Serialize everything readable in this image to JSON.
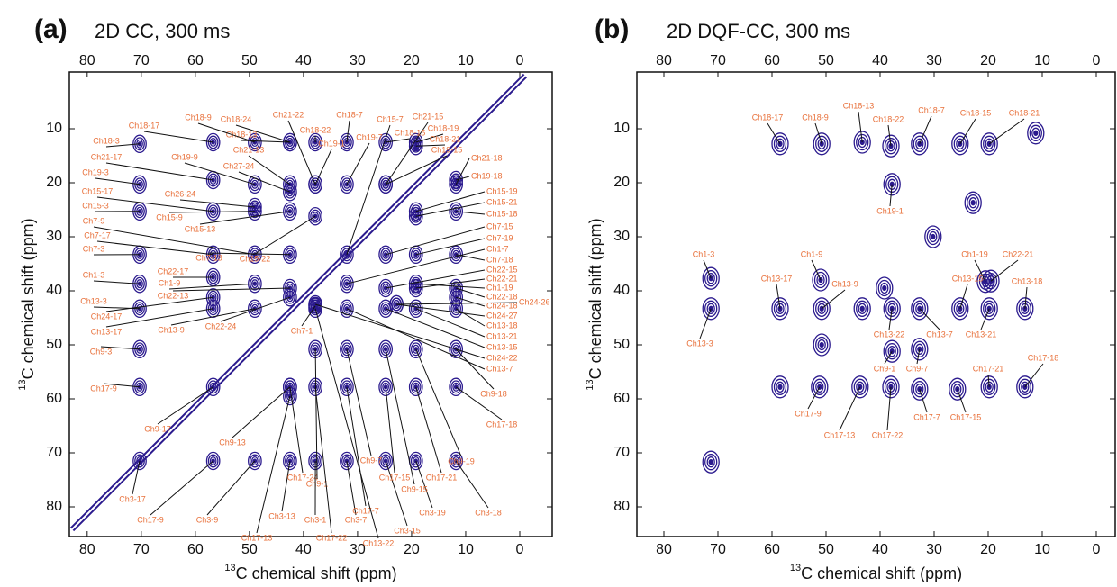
{
  "chart_data": [
    {
      "type": "contour",
      "panel": "(a)",
      "title": "2D CC, 300 ms",
      "xlabel_sup": "13",
      "xlabel": "C chemical shift (ppm)",
      "ylabel_sup": "13",
      "ylabel": "C chemical shift (ppm)",
      "xlim": [
        83.3,
        -6
      ],
      "ylim": [
        -0.5,
        85.5
      ],
      "xticks": [
        80,
        70,
        60,
        50,
        40,
        30,
        20,
        10,
        0
      ],
      "yticks": [
        10,
        20,
        30,
        40,
        50,
        60,
        70,
        80
      ],
      "color": "#2b1a8e",
      "label_color": "#e8703a",
      "peaks": [
        {
          "label": "Ch18-24",
          "x": 42.5,
          "y": 12.5
        },
        {
          "label": "Ch21-22",
          "x": 37.8,
          "y": 20.3
        },
        {
          "label": "Ch18-7",
          "x": 32.0,
          "y": 12.5
        },
        {
          "label": "Ch15-7",
          "x": 32.0,
          "y": 33.3
        },
        {
          "label": "Ch21-15",
          "x": 24.8,
          "y": 20.3
        },
        {
          "label": "Ch18-22",
          "x": 37.8,
          "y": 12.5
        },
        {
          "label": "Ch18-13",
          "x": 42.5,
          "y": 12.5
        },
        {
          "label": "Ch19-1",
          "x": 37.8,
          "y": 20.3
        },
        {
          "label": "Ch19-7",
          "x": 32.0,
          "y": 20.3
        },
        {
          "label": "Ch18-15",
          "x": 24.8,
          "y": 12.5
        },
        {
          "label": "Ch18-19",
          "x": 19.2,
          "y": 12.5
        },
        {
          "label": "Ch18-21",
          "x": 19.2,
          "y": 13.2
        },
        {
          "label": "Ch19-15",
          "x": 24.8,
          "y": 20.3
        },
        {
          "label": "Ch21-13",
          "x": 42.5,
          "y": 20.3
        },
        {
          "label": "Ch18-17",
          "x": 56.7,
          "y": 12.5
        },
        {
          "label": "Ch18-9",
          "x": 49.0,
          "y": 12.5
        },
        {
          "label": "Ch18-3",
          "x": 70.3,
          "y": 12.8
        },
        {
          "label": "Ch19-9",
          "x": 49.0,
          "y": 20.3
        },
        {
          "label": "Ch27-24",
          "x": 42.5,
          "y": 21.7
        },
        {
          "label": "Ch21-17",
          "x": 56.7,
          "y": 19.5
        },
        {
          "label": "Ch19-3",
          "x": 70.3,
          "y": 20.3
        },
        {
          "label": "Ch26-24",
          "x": 49.0,
          "y": 24.5
        },
        {
          "label": "Ch15-17",
          "x": 56.7,
          "y": 25.3
        },
        {
          "label": "Ch15-3",
          "x": 70.3,
          "y": 25.3
        },
        {
          "label": "Ch15-9",
          "x": 49.0,
          "y": 25.3
        },
        {
          "label": "Ch15-13",
          "x": 42.5,
          "y": 25.3
        },
        {
          "label": "Ch7-9",
          "x": 49.0,
          "y": 33.3
        },
        {
          "label": "Ch15-22",
          "x": 37.8,
          "y": 26.2
        },
        {
          "label": "Ch7-17",
          "x": 56.7,
          "y": 33.3
        },
        {
          "label": "Ch7-3",
          "x": 70.3,
          "y": 33.3
        },
        {
          "label": "Ch7-13",
          "x": 42.5,
          "y": 33.3
        },
        {
          "label": "Ch1-3",
          "x": 70.3,
          "y": 38.7
        },
        {
          "label": "Ch22-17",
          "x": 56.7,
          "y": 37.5
        },
        {
          "label": "Ch1-9",
          "x": 49.0,
          "y": 38.7
        },
        {
          "label": "Ch22-13",
          "x": 42.5,
          "y": 39.5
        },
        {
          "label": "Ch13-3",
          "x": 70.3,
          "y": 43.3
        },
        {
          "label": "Ch24-17",
          "x": 56.7,
          "y": 41.2
        },
        {
          "label": "Ch13-17",
          "x": 56.7,
          "y": 43.3
        },
        {
          "label": "Ch13-9",
          "x": 49.0,
          "y": 43.3
        },
        {
          "label": "Ch22-24",
          "x": 42.5,
          "y": 41.2
        },
        {
          "label": "Ch7-1",
          "x": 37.8,
          "y": 42.8
        },
        {
          "label": "Ch9-3",
          "x": 70.3,
          "y": 50.8
        },
        {
          "label": "Ch17-9",
          "x": 70.3,
          "y": 57.8
        },
        {
          "label": "Ch9-17",
          "x": 56.7,
          "y": 57.8
        },
        {
          "label": "Ch9-13",
          "x": 42.5,
          "y": 57.8
        },
        {
          "label": "Ch3-17",
          "x": 70.3,
          "y": 71.5
        },
        {
          "label": "Ch17-9",
          "x": 56.7,
          "y": 71.5
        },
        {
          "label": "Ch3-9",
          "x": 49.0,
          "y": 71.5
        },
        {
          "label": "Ch3-13",
          "x": 42.5,
          "y": 71.5
        },
        {
          "label": "Ch17-13",
          "x": 42.5,
          "y": 59.5
        },
        {
          "label": "Ch17-24",
          "x": 42.5,
          "y": 57.8
        },
        {
          "label": "Ch9-1",
          "x": 37.8,
          "y": 50.8
        },
        {
          "label": "Ch3-1",
          "x": 37.8,
          "y": 71.5
        },
        {
          "label": "Ch3-7",
          "x": 32.0,
          "y": 71.5
        },
        {
          "label": "Ch17-22",
          "x": 37.8,
          "y": 57.8
        },
        {
          "label": "Ch17-7",
          "x": 32.0,
          "y": 57.8
        },
        {
          "label": "Ch13-22",
          "x": 37.8,
          "y": 43.3
        },
        {
          "label": "Ch3-15",
          "x": 24.8,
          "y": 71.5
        },
        {
          "label": "Ch3-19",
          "x": 19.2,
          "y": 71.5
        },
        {
          "label": "Ch3-18",
          "x": 11.8,
          "y": 71.5
        },
        {
          "label": "Ch9-7",
          "x": 32.0,
          "y": 50.8
        },
        {
          "label": "Ch17-15",
          "x": 24.8,
          "y": 57.8
        },
        {
          "label": "Ch9-15",
          "x": 24.8,
          "y": 50.8
        },
        {
          "label": "Ch17-21",
          "x": 19.2,
          "y": 57.8
        },
        {
          "label": "Ch9-19",
          "x": 19.2,
          "y": 50.8
        },
        {
          "label": "Ch17-18",
          "x": 11.8,
          "y": 57.8
        },
        {
          "label": "Ch9-18",
          "x": 11.8,
          "y": 50.8
        },
        {
          "label": "Ch21-18",
          "x": 11.8,
          "y": 20.3
        },
        {
          "label": "Ch19-18",
          "x": 11.8,
          "y": 19.5
        },
        {
          "label": "Ch15-19",
          "x": 19.2,
          "y": 25.3
        },
        {
          "label": "Ch15-21",
          "x": 19.2,
          "y": 26.2
        },
        {
          "label": "Ch15-18",
          "x": 11.8,
          "y": 25.3
        },
        {
          "label": "Ch7-15",
          "x": 24.8,
          "y": 33.3
        },
        {
          "label": "Ch7-19",
          "x": 19.2,
          "y": 33.3
        },
        {
          "label": "Ch1-7",
          "x": 32.0,
          "y": 38.7
        },
        {
          "label": "Ch7-18",
          "x": 11.8,
          "y": 33.3
        },
        {
          "label": "Ch22-15",
          "x": 24.8,
          "y": 39.5
        },
        {
          "label": "Ch22-21",
          "x": 19.2,
          "y": 39.5
        },
        {
          "label": "Ch1-19",
          "x": 19.2,
          "y": 38.7
        },
        {
          "label": "Ch22-18",
          "x": 11.8,
          "y": 39.5
        },
        {
          "label": "Ch24-18",
          "x": 11.8,
          "y": 41.2
        },
        {
          "label": "Ch24-27",
          "x": 22.8,
          "y": 42.5
        },
        {
          "label": "Ch24-26",
          "x": 22.8,
          "y": 42.5
        },
        {
          "label": "Ch13-18",
          "x": 11.8,
          "y": 43.3
        },
        {
          "label": "Ch13-21",
          "x": 19.2,
          "y": 43.3
        },
        {
          "label": "Ch13-15",
          "x": 24.8,
          "y": 43.3
        },
        {
          "label": "Ch24-22",
          "x": 37.8,
          "y": 42.5
        },
        {
          "label": "Ch13-7",
          "x": 32.0,
          "y": 43.3
        }
      ]
    },
    {
      "type": "contour",
      "panel": "(b)",
      "title": "2D DQF-CC, 300 ms",
      "xlabel_sup": "13",
      "xlabel": "C chemical shift (ppm)",
      "ylabel_sup": "13",
      "ylabel": "C chemical shift (ppm)",
      "xlim": [
        85,
        -3.5
      ],
      "ylim": [
        -0.5,
        85.5
      ],
      "xticks": [
        80,
        70,
        60,
        50,
        40,
        30,
        20,
        10,
        0
      ],
      "yticks": [
        10,
        20,
        30,
        40,
        50,
        60,
        70,
        80
      ],
      "color": "#2b1a8e",
      "label_color": "#e8703a",
      "peaks": [
        {
          "label": "Ch18-17",
          "x": 58.5,
          "y": 12.8
        },
        {
          "label": "Ch18-9",
          "x": 50.8,
          "y": 12.8
        },
        {
          "label": "Ch18-13",
          "x": 43.3,
          "y": 12.5
        },
        {
          "label": "Ch18-22",
          "x": 38.0,
          "y": 13.2
        },
        {
          "label": "Ch18-7",
          "x": 32.7,
          "y": 12.8
        },
        {
          "label": "Ch18-15",
          "x": 25.2,
          "y": 12.8
        },
        {
          "label": "Ch18-21",
          "x": 19.8,
          "y": 12.8
        },
        {
          "label": "Ch19-1",
          "x": 37.8,
          "y": 20.3
        },
        {
          "label": "Ch1-3",
          "x": 71.3,
          "y": 37.7
        },
        {
          "label": "Ch1-9",
          "x": 51.0,
          "y": 38.0
        },
        {
          "label": "Ch1-19",
          "x": 20.5,
          "y": 38.3
        },
        {
          "label": "Ch22-21",
          "x": 19.5,
          "y": 38.2
        },
        {
          "label": "Ch13-17",
          "x": 58.5,
          "y": 43.3
        },
        {
          "label": "Ch13-9",
          "x": 50.8,
          "y": 43.3
        },
        {
          "label": "Ch13-3",
          "x": 71.3,
          "y": 43.3
        },
        {
          "label": "Ch13-22",
          "x": 37.8,
          "y": 43.3
        },
        {
          "label": "Ch13-7",
          "x": 32.7,
          "y": 43.3
        },
        {
          "label": "Ch13-15",
          "x": 25.2,
          "y": 43.3
        },
        {
          "label": "Ch13-21",
          "x": 19.8,
          "y": 43.3
        },
        {
          "label": "Ch13-18",
          "x": 13.2,
          "y": 43.3
        },
        {
          "label": "Ch9-1",
          "x": 37.8,
          "y": 51.2
        },
        {
          "label": "Ch9-7",
          "x": 32.7,
          "y": 50.8
        },
        {
          "label": "Ch17-9",
          "x": 51.2,
          "y": 57.8
        },
        {
          "label": "Ch17-13",
          "x": 43.7,
          "y": 57.8
        },
        {
          "label": "Ch17-22",
          "x": 38.0,
          "y": 57.8
        },
        {
          "label": "Ch17-7",
          "x": 32.7,
          "y": 58.2
        },
        {
          "label": "Ch17-15",
          "x": 25.7,
          "y": 58.2
        },
        {
          "label": "Ch17-21",
          "x": 19.8,
          "y": 57.8
        },
        {
          "label": "Ch17-18",
          "x": 13.2,
          "y": 57.8
        }
      ],
      "unlabeled_peaks": [
        {
          "x": 11.2,
          "y": 10.8
        },
        {
          "x": 22.8,
          "y": 23.7
        },
        {
          "x": 30.2,
          "y": 30.0
        },
        {
          "x": 39.2,
          "y": 39.5
        },
        {
          "x": 43.3,
          "y": 43.3
        },
        {
          "x": 50.8,
          "y": 50.0
        },
        {
          "x": 58.5,
          "y": 57.8
        },
        {
          "x": 71.3,
          "y": 71.7
        }
      ]
    }
  ]
}
